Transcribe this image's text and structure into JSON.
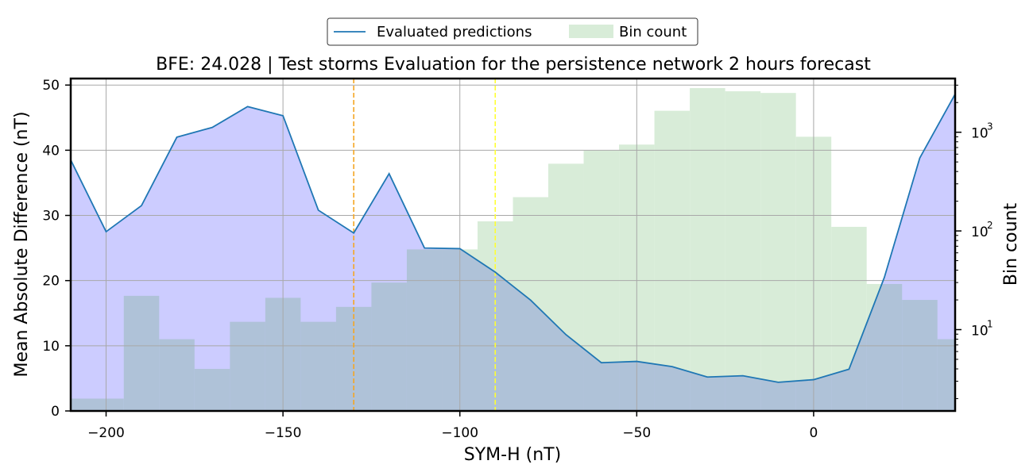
{
  "chart_data": {
    "type": "line",
    "title": "BFE: 24.028 | Test storms Evaluation for the persistence network 2 hours forecast",
    "xlabel": "SYM-H (nT)",
    "ylabel": "Mean Absolute Difference (nT)",
    "y2label": "Bin count",
    "xlim": [
      -210,
      40
    ],
    "ylim": [
      0,
      51
    ],
    "y2lim_log": [
      1.5,
      3500
    ],
    "x_ticks": [
      -200,
      -150,
      -100,
      -50,
      0
    ],
    "x_tick_labels": [
      "−200",
      "−150",
      "−100",
      "−50",
      "0"
    ],
    "y_ticks": [
      0,
      10,
      20,
      30,
      40,
      50
    ],
    "y_tick_labels": [
      "0",
      "10",
      "20",
      "30",
      "40",
      "50"
    ],
    "y2_ticks": [
      10,
      100,
      1000
    ],
    "y2_tick_labels": [
      "10",
      "10",
      "10"
    ],
    "y2_tick_exponents": [
      "1",
      "2",
      "3"
    ],
    "grid": true,
    "legend_position": "top-center",
    "legend": [
      {
        "label": "Evaluated predictions",
        "kind": "line",
        "color": "#1f77b4"
      },
      {
        "label": "Bin count",
        "kind": "patch",
        "color": "#d8ecd8"
      }
    ],
    "series": [
      {
        "name": "Evaluated predictions",
        "kind": "line",
        "color": "#1f77b4",
        "fill_color": "#ccccff",
        "x": [
          -210,
          -200,
          -190,
          -180,
          -170,
          -160,
          -150,
          -140,
          -130,
          -120,
          -110,
          -100,
          -90,
          -80,
          -70,
          -60,
          -50,
          -40,
          -30,
          -20,
          -10,
          0,
          10,
          20,
          30,
          40
        ],
        "y": [
          38.5,
          27.5,
          31.5,
          42.0,
          43.5,
          46.7,
          45.3,
          30.8,
          27.3,
          36.4,
          25.0,
          24.9,
          21.3,
          17.0,
          11.7,
          7.4,
          7.6,
          6.8,
          5.2,
          5.4,
          4.4,
          4.8,
          6.4,
          20.5,
          38.8,
          48.6
        ]
      },
      {
        "name": "Bin count",
        "kind": "histogram",
        "color": "#d8ecd8",
        "overlap_color": "#afc2d8",
        "bin_edges": [
          -210,
          -195,
          -185,
          -175,
          -165,
          -155,
          -145,
          -135,
          -125,
          -115,
          -105,
          -95,
          -85,
          -75,
          -65,
          -55,
          -45,
          -35,
          -25,
          -15,
          -5,
          5,
          15,
          25,
          35,
          40
        ],
        "counts": [
          2,
          22,
          8,
          4,
          12,
          21,
          12,
          17,
          30,
          65,
          65,
          125,
          220,
          480,
          650,
          750,
          1650,
          2800,
          2600,
          2500,
          900,
          110,
          29,
          20,
          8
        ]
      }
    ],
    "vlines": [
      {
        "x": -130,
        "color": "#f5a623"
      },
      {
        "x": -90,
        "color": "#ffff33"
      }
    ]
  }
}
